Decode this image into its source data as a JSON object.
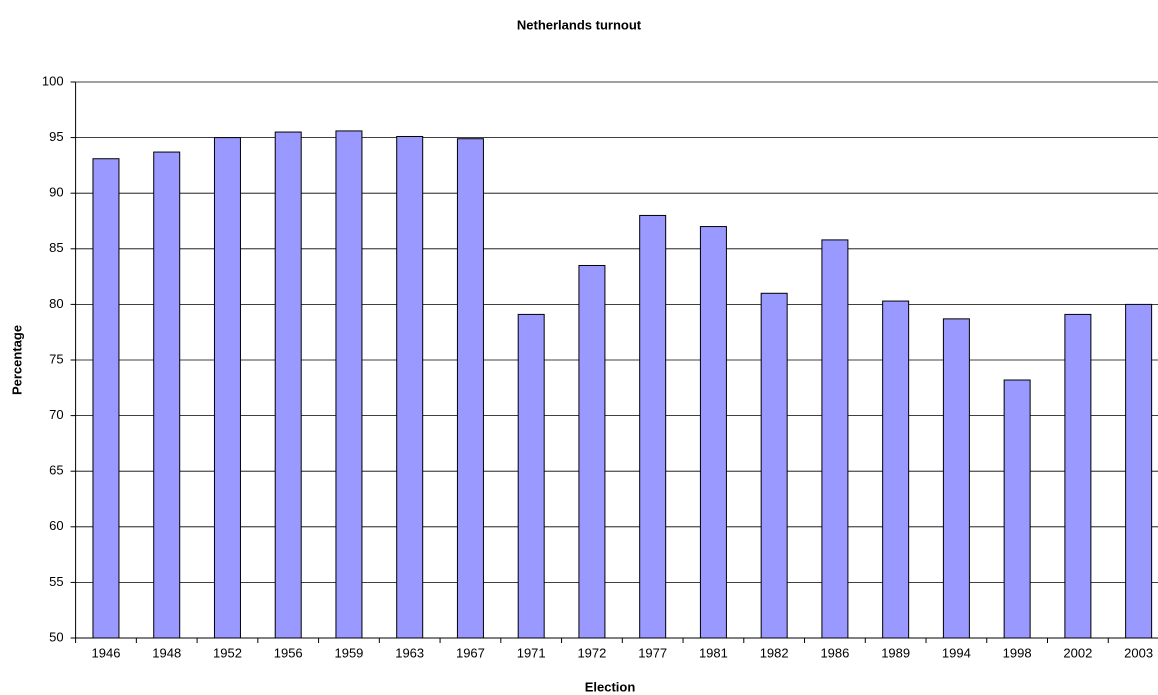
{
  "chart_data": {
    "type": "bar",
    "title": "Netherlands turnout",
    "x_label": "Election",
    "y_label": "Percentage",
    "categories": [
      "1946",
      "1948",
      "1952",
      "1956",
      "1959",
      "1963",
      "1967",
      "1971",
      "1972",
      "1977",
      "1981",
      "1982",
      "1986",
      "1989",
      "1994",
      "1998",
      "2002",
      "2003"
    ],
    "values": [
      93.1,
      93.7,
      95.0,
      95.5,
      95.6,
      95.1,
      94.9,
      79.1,
      83.5,
      88.0,
      87.0,
      81.0,
      85.8,
      80.3,
      78.7,
      73.2,
      79.1,
      80.0
    ],
    "color": "#9999ff",
    "ylim": [
      50,
      100
    ],
    "yticks": [
      50,
      55,
      60,
      65,
      70,
      75,
      80,
      85,
      90,
      95,
      100
    ],
    "grid": true
  }
}
